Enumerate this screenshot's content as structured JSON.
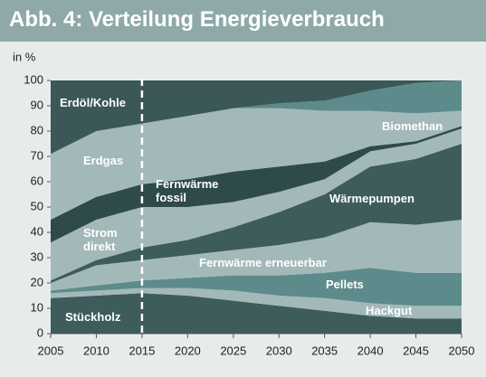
{
  "chart_data": {
    "type": "stacked_area",
    "title": "Abb. 4: Verteilung Energieverbrauch",
    "y_label": "in %",
    "x": [
      2005,
      2010,
      2015,
      2020,
      2025,
      2030,
      2035,
      2040,
      2045,
      2050
    ],
    "xlim": [
      2005,
      2050
    ],
    "xticks": [
      2005,
      2010,
      2015,
      2020,
      2025,
      2030,
      2035,
      2040,
      2045,
      2050
    ],
    "ylim": [
      0,
      100
    ],
    "yticks": [
      0,
      10,
      20,
      30,
      40,
      50,
      60,
      70,
      80,
      90,
      100
    ],
    "series": [
      {
        "name": "Stückholz",
        "color": "#3e5c5c",
        "values": [
          14,
          15,
          16,
          15,
          13,
          11,
          9,
          7,
          6,
          6
        ]
      },
      {
        "name": "Hackgut",
        "color": "#a3b9b9",
        "values": [
          2,
          2,
          2,
          3,
          4,
          4,
          5,
          5,
          5,
          5
        ]
      },
      {
        "name": "Pellets",
        "color": "#5d8b8b",
        "values": [
          1,
          2,
          3,
          4,
          6,
          8,
          10,
          14,
          13,
          13
        ]
      },
      {
        "name": "Fernwärme erneuerbar",
        "color": "#a3b9b9",
        "values": [
          3,
          8,
          8,
          9,
          10,
          12,
          14,
          18,
          19,
          21
        ]
      },
      {
        "name": "Wärmepumpen",
        "color": "#3e5c5c",
        "values": [
          1,
          2,
          5,
          6,
          9,
          13,
          17,
          22,
          26,
          30
        ]
      },
      {
        "name": "Strom direkt",
        "color": "#a3b9b9",
        "values": [
          15,
          16,
          16,
          13,
          10,
          8,
          6,
          6,
          6,
          6
        ]
      },
      {
        "name": "Fernwärme fossil",
        "color": "#2f4a4a",
        "values": [
          9,
          9,
          9,
          11,
          12,
          10,
          7,
          2,
          1,
          1
        ]
      },
      {
        "name": "Erdgas",
        "color": "#a3b9b9",
        "values": [
          26,
          26,
          24,
          25,
          25,
          23,
          20,
          14,
          11,
          6
        ]
      },
      {
        "name": "Biomethan",
        "color": "#5d8b8b",
        "values": [
          0,
          0,
          0,
          0,
          0,
          2,
          4,
          8,
          12,
          12
        ]
      },
      {
        "name": "Erdöl/Kohle",
        "color": "#3b5757",
        "values": [
          29,
          20,
          17,
          14,
          11,
          9,
          8,
          4,
          1,
          0
        ]
      }
    ]
  }
}
